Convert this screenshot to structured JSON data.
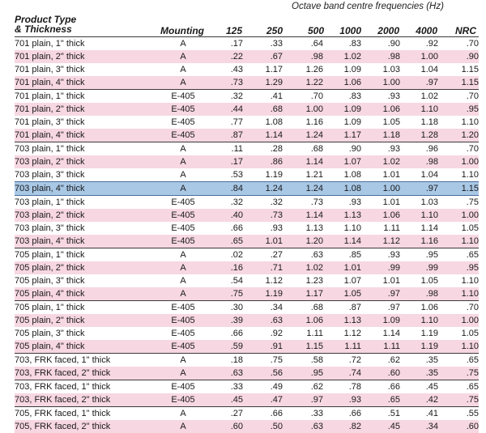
{
  "caption": "Octave band centre frequencies (Hz)",
  "headers": {
    "product_line1": "Product Type",
    "product_line2": "& Thickness",
    "mounting": "Mounting",
    "f125": "125",
    "f250": "250",
    "f500": "500",
    "f1000": "1000",
    "f2000": "2000",
    "f4000": "4000",
    "nrc": "NRC"
  },
  "rows": [
    {
      "name": "701 plain, 1\" thick",
      "mount": "A",
      "v": [
        ".17",
        ".33",
        ".64",
        ".83",
        ".90",
        ".92",
        ".70"
      ]
    },
    {
      "name": "701 plain, 2\" thick",
      "mount": "A",
      "v": [
        ".22",
        ".67",
        ".98",
        "1.02",
        ".98",
        "1.00",
        ".90"
      ]
    },
    {
      "name": "701 plain, 3\" thick",
      "mount": "A",
      "v": [
        ".43",
        "1.17",
        "1.26",
        "1.09",
        "1.03",
        "1.04",
        "1.15"
      ]
    },
    {
      "name": "701 plain, 4\" thick",
      "mount": "A",
      "v": [
        ".73",
        "1.29",
        "1.22",
        "1.06",
        "1.00",
        ".97",
        "1.15"
      ]
    },
    {
      "name": "701 plain, 1\" thick",
      "mount": "E-405",
      "v": [
        ".32",
        ".41",
        ".70",
        ".83",
        ".93",
        "1.02",
        ".70"
      ]
    },
    {
      "name": "701 plain, 2\" thick",
      "mount": "E-405",
      "v": [
        ".44",
        ".68",
        "1.00",
        "1.09",
        "1.06",
        "1.10",
        ".95"
      ]
    },
    {
      "name": "701 plain, 3\" thick",
      "mount": "E-405",
      "v": [
        ".77",
        "1.08",
        "1.16",
        "1.09",
        "1.05",
        "1.18",
        "1.10"
      ]
    },
    {
      "name": "701 plain, 4\" thick",
      "mount": "E-405",
      "v": [
        ".87",
        "1.14",
        "1.24",
        "1.17",
        "1.18",
        "1.28",
        "1.20"
      ]
    },
    {
      "name": "703 plain, 1\" thick",
      "mount": "A",
      "v": [
        ".11",
        ".28",
        ".68",
        ".90",
        ".93",
        ".96",
        ".70"
      ]
    },
    {
      "name": "703 plain, 2\" thick",
      "mount": "A",
      "v": [
        ".17",
        ".86",
        "1.14",
        "1.07",
        "1.02",
        ".98",
        "1.00"
      ]
    },
    {
      "name": "703 plain, 3\" thick",
      "mount": "A",
      "v": [
        ".53",
        "1.19",
        "1.21",
        "1.08",
        "1.01",
        "1.04",
        "1.10"
      ]
    },
    {
      "name": "703 plain, 4\" thick",
      "mount": "A",
      "v": [
        ".84",
        "1.24",
        "1.24",
        "1.08",
        "1.00",
        ".97",
        "1.15"
      ]
    },
    {
      "name": "703 plain, 1\" thick",
      "mount": "E-405",
      "v": [
        ".32",
        ".32",
        ".73",
        ".93",
        "1.01",
        "1.03",
        ".75"
      ]
    },
    {
      "name": "703 plain, 2\" thick",
      "mount": "E-405",
      "v": [
        ".40",
        ".73",
        "1.14",
        "1.13",
        "1.06",
        "1.10",
        "1.00"
      ]
    },
    {
      "name": "703 plain, 3\" thick",
      "mount": "E-405",
      "v": [
        ".66",
        ".93",
        "1.13",
        "1.10",
        "1.11",
        "1.14",
        "1.05"
      ]
    },
    {
      "name": "703 plain, 4\" thick",
      "mount": "E-405",
      "v": [
        ".65",
        "1.01",
        "1.20",
        "1.14",
        "1.12",
        "1.16",
        "1.10"
      ]
    },
    {
      "name": "705 plain, 1\" thick",
      "mount": "A",
      "v": [
        ".02",
        ".27",
        ".63",
        ".85",
        ".93",
        ".95",
        ".65"
      ]
    },
    {
      "name": "705 plain, 2\" thick",
      "mount": "A",
      "v": [
        ".16",
        ".71",
        "1.02",
        "1.01",
        ".99",
        ".99",
        ".95"
      ]
    },
    {
      "name": "705 plain, 3\" thick",
      "mount": "A",
      "v": [
        ".54",
        "1.12",
        "1.23",
        "1.07",
        "1.01",
        "1.05",
        "1.10"
      ]
    },
    {
      "name": "705 plain, 4\" thick",
      "mount": "A",
      "v": [
        ".75",
        "1.19",
        "1.17",
        "1.05",
        ".97",
        ".98",
        "1.10"
      ]
    },
    {
      "name": "705 plain, 1\" thick",
      "mount": "E-405",
      "v": [
        ".30",
        ".34",
        ".68",
        ".87",
        ".97",
        "1.06",
        ".70"
      ]
    },
    {
      "name": "705 plain, 2\" thick",
      "mount": "E-405",
      "v": [
        ".39",
        ".63",
        "1.06",
        "1.13",
        "1.09",
        "1.10",
        "1.00"
      ]
    },
    {
      "name": "705 plain, 3\" thick",
      "mount": "E-405",
      "v": [
        ".66",
        ".92",
        "1.11",
        "1.12",
        "1.14",
        "1.19",
        "1.05"
      ]
    },
    {
      "name": "705 plain, 4\" thick",
      "mount": "E-405",
      "v": [
        ".59",
        ".91",
        "1.15",
        "1.11",
        "1.11",
        "1.19",
        "1.10"
      ]
    },
    {
      "name": "703, FRK faced, 1\" thick",
      "mount": "A",
      "v": [
        ".18",
        ".75",
        ".58",
        ".72",
        ".62",
        ".35",
        ".65"
      ]
    },
    {
      "name": "703, FRK faced, 2\" thick",
      "mount": "A",
      "v": [
        ".63",
        ".56",
        ".95",
        ".74",
        ".60",
        ".35",
        ".75"
      ]
    },
    {
      "name": "703, FRK faced, 1\" thick",
      "mount": "E-405",
      "v": [
        ".33",
        ".49",
        ".62",
        ".78",
        ".66",
        ".45",
        ".65"
      ]
    },
    {
      "name": "703, FRK faced, 2\" thick",
      "mount": "E-405",
      "v": [
        ".45",
        ".47",
        ".97",
        ".93",
        ".65",
        ".42",
        ".75"
      ]
    },
    {
      "name": "705, FRK faced, 1\" thick",
      "mount": "A",
      "v": [
        ".27",
        ".66",
        ".33",
        ".66",
        ".51",
        ".41",
        ".55"
      ]
    },
    {
      "name": "705, FRK faced, 2\" thick",
      "mount": "A",
      "v": [
        ".60",
        ".50",
        ".63",
        ".82",
        ".45",
        ".34",
        ".60"
      ]
    }
  ],
  "selected_row_index": 11,
  "colors": {
    "row_pink": "#f7d7e2",
    "row_white": "#ffffff",
    "row_selected": "#a9c8e6",
    "group_rule": "#3a3a3a"
  }
}
